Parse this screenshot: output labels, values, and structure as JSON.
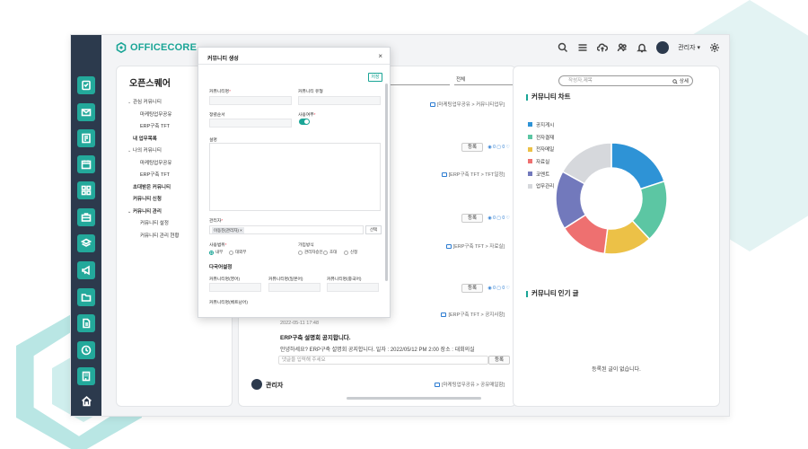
{
  "brand": {
    "name": "OFFICECORE",
    "color": "#1aa596"
  },
  "header": {
    "user": "관리자 ▾"
  },
  "rail": {
    "icons": [
      "approval-icon",
      "mail-icon",
      "board-icon",
      "calendar-icon",
      "apps-icon",
      "briefcase-icon",
      "layers-icon",
      "megaphone-icon",
      "folder-icon",
      "document-icon",
      "clock-icon",
      "building-icon"
    ],
    "home": "home-icon"
  },
  "sidebar": {
    "title": "오픈스퀘어",
    "items": [
      {
        "label": "관심 커뮤니티",
        "level": 1,
        "caret": true
      },
      {
        "label": "마케팅업무공유",
        "level": 2
      },
      {
        "label": "ERP구축 TFT",
        "level": 2
      },
      {
        "label": "내 업무목록",
        "level": 1,
        "bold": true
      },
      {
        "label": "나의 커뮤니티",
        "level": 1,
        "caret": true
      },
      {
        "label": "마케팅업무공유",
        "level": 2
      },
      {
        "label": "ERP구축 TFT",
        "level": 2
      },
      {
        "label": "초대받은 커뮤니티",
        "level": 1,
        "bold": true
      },
      {
        "label": "커뮤니티 신청",
        "level": 1,
        "bold": true
      },
      {
        "label": "커뮤니티 관리",
        "level": 1,
        "caret": true
      },
      {
        "label": "커뮤니티 설정",
        "level": 2
      },
      {
        "label": "커뮤니티 관리 현황",
        "level": 2
      }
    ]
  },
  "main": {
    "filter1": "",
    "filter2": "전체",
    "crumbs": [
      "[마케팅업무공유 > 커뮤니티업무]",
      "[ERP구축 TFT > TFT일정]",
      "[ERP구축 TFT > 자료실]",
      "[ERP구축 TFT > 공지사항]",
      "[마케팅업무공유 > 공유매일함]"
    ],
    "register": "등록",
    "stats": "◉ 0  ▢ 0  ♡",
    "post": {
      "date": "2022-05-11 17:48",
      "title": "ERP구축 설명회 공지합니다.",
      "body": "안녕하세요? ERP구축 설명회 공지합니다. 일자 : 2022/05/12 PM 2:00 장소 : 대회의실",
      "comment_placeholder": "댓글을 입력해 주세요"
    },
    "last_author": "관리자"
  },
  "right": {
    "search_placeholder": "작성자,제목",
    "search_button": "상세",
    "chart_title": "커뮤니티 차트",
    "popular_title": "커뮤니티 인기 글",
    "empty_text": "등록된 글이 없습니다."
  },
  "chart_data": {
    "type": "pie",
    "title": "커뮤니티 차트",
    "categories": [
      "공지게시",
      "전자결재",
      "전자메일",
      "자료실",
      "코멘트",
      "업무관리"
    ],
    "values": [
      20,
      18,
      14,
      14,
      17,
      17
    ],
    "colors": [
      "#2e93d6",
      "#5cc6a3",
      "#ecc147",
      "#ee7070",
      "#7279bc",
      "#d6d8dc"
    ],
    "donut": true
  },
  "modal": {
    "title": "커뮤니티 생성",
    "close": "×",
    "save": "저장",
    "name_label": "커뮤니티명",
    "type_label": "커뮤니티 유형",
    "order_label": "정렬순서",
    "use_label": "사용여부",
    "desc_label": "설명",
    "admin_label": "관리자",
    "admin_tag": "이동진(관리자) ×",
    "select_btn": "선택",
    "range_label": "사용범위",
    "range_options": [
      "내부",
      "대외부"
    ],
    "join_label": "가입방식",
    "join_options": [
      "관리자승인",
      "초대",
      "신청"
    ],
    "i18n_title": "다국어설정",
    "i18n_fields": [
      "커뮤니티명(영어)",
      "커뮤니티명(일본어)",
      "커뮤니티명(중국어)",
      "커뮤니티명(베트남어)"
    ]
  }
}
